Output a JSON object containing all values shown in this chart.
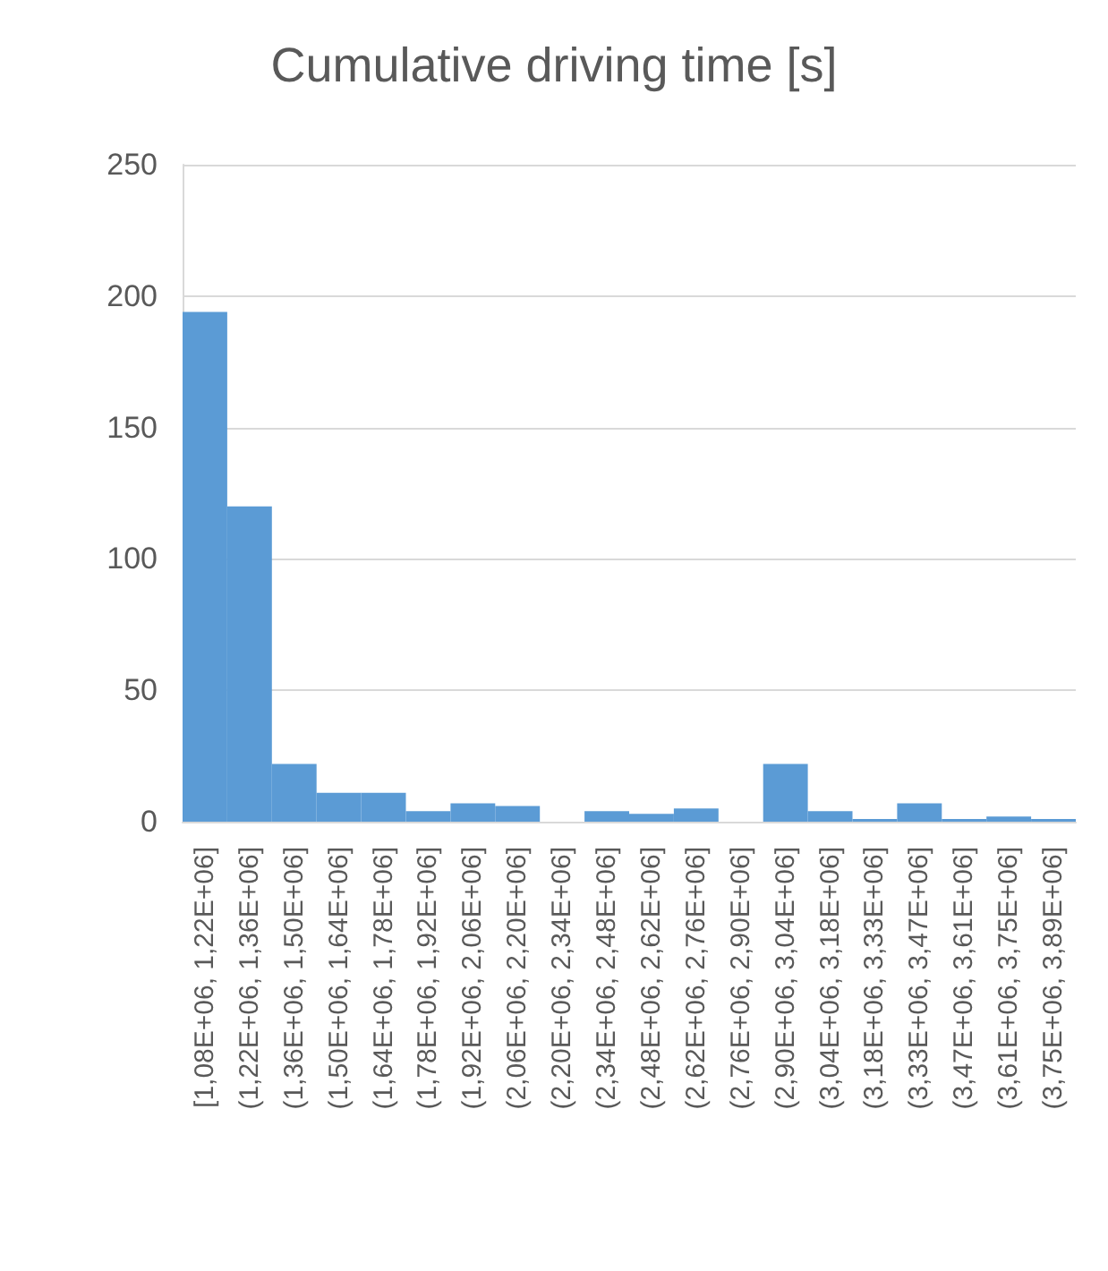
{
  "chart_data": {
    "type": "bar",
    "title": "Cumulative driving time [s]",
    "categories": [
      "[1,08E+06, 1,22E+06]",
      "(1,22E+06, 1,36E+06]",
      "(1,36E+06, 1,50E+06]",
      "(1,50E+06, 1,64E+06]",
      "(1,64E+06, 1,78E+06]",
      "(1,78E+06, 1,92E+06]",
      "(1,92E+06, 2,06E+06]",
      "(2,06E+06, 2,20E+06]",
      "(2,20E+06, 2,34E+06]",
      "(2,34E+06, 2,48E+06]",
      "(2,48E+06, 2,62E+06]",
      "(2,62E+06, 2,76E+06]",
      "(2,76E+06, 2,90E+06]",
      "(2,90E+06, 3,04E+06]",
      "(3,04E+06, 3,18E+06]",
      "(3,18E+06, 3,33E+06]",
      "(3,33E+06, 3,47E+06]",
      "(3,47E+06, 3,61E+06]",
      "(3,61E+06, 3,75E+06]",
      "(3,75E+06, 3,89E+06]"
    ],
    "values": [
      194,
      120,
      22,
      11,
      11,
      4,
      7,
      6,
      0,
      4,
      3,
      5,
      0,
      22,
      4,
      1,
      7,
      1,
      2,
      1
    ],
    "color": "#5b9bd5",
    "ylim": [
      0,
      250
    ],
    "yticks": [
      0,
      50,
      100,
      150,
      200,
      250
    ],
    "grid": "y"
  }
}
